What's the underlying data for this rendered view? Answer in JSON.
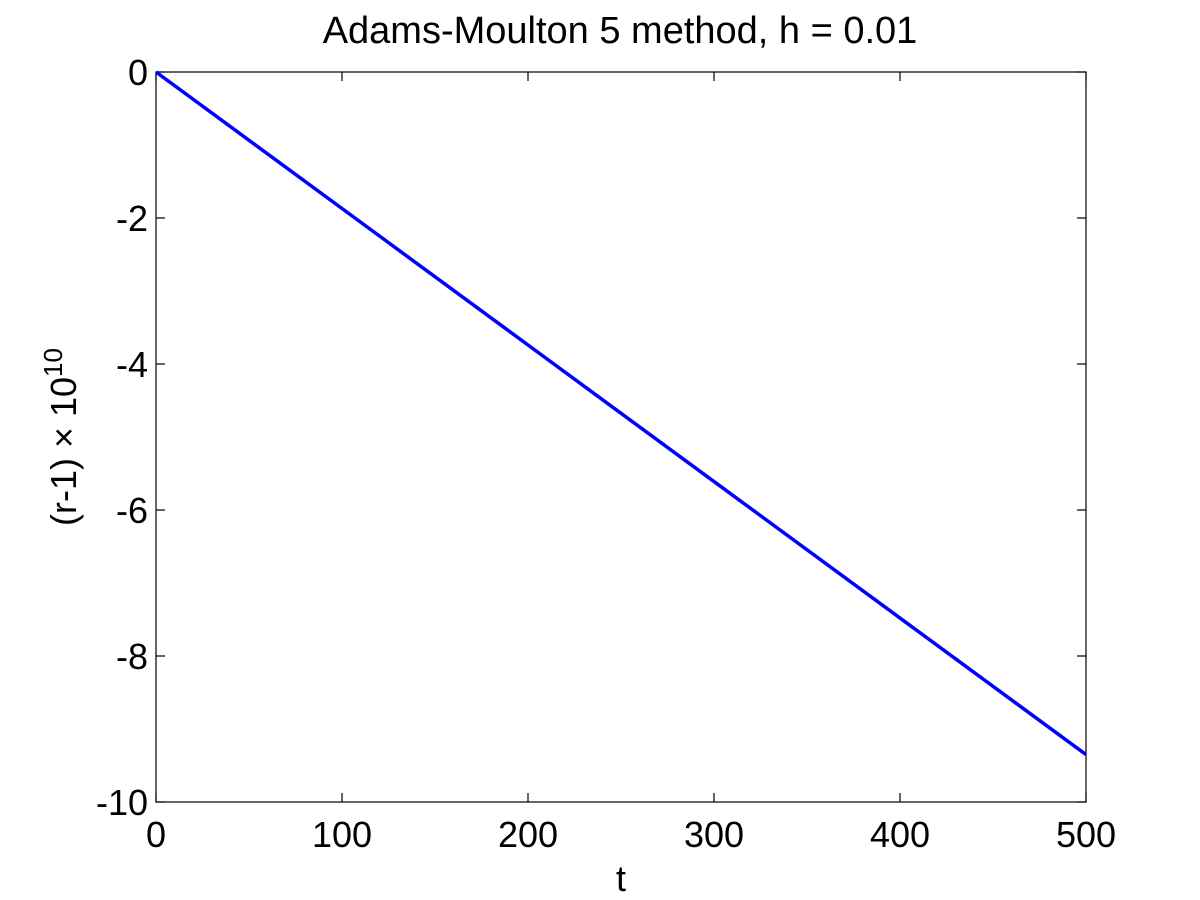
{
  "chart_data": {
    "type": "line",
    "title": "Adams-Moulton 5 method, h = 0.01",
    "xlabel": "t",
    "ylabel": {
      "base": "(r-1) × 10",
      "exponent": "10"
    },
    "xlim": [
      0,
      500
    ],
    "ylim": [
      -10,
      0
    ],
    "x_ticks": [
      0,
      100,
      200,
      300,
      400,
      500
    ],
    "y_ticks": [
      0,
      -2,
      -4,
      -6,
      -8,
      -10
    ],
    "x_tick_labels": [
      "0",
      "100",
      "200",
      "300",
      "400",
      "500"
    ],
    "y_tick_labels": [
      "0",
      "-2",
      "-4",
      "-6",
      "-8",
      "-10"
    ],
    "grid": false,
    "series": [
      {
        "color": "#0000ff",
        "x": [
          0,
          100,
          200,
          300,
          400,
          500
        ],
        "y": [
          0,
          -1.87,
          -3.74,
          -5.61,
          -7.48,
          -9.35
        ]
      }
    ]
  }
}
